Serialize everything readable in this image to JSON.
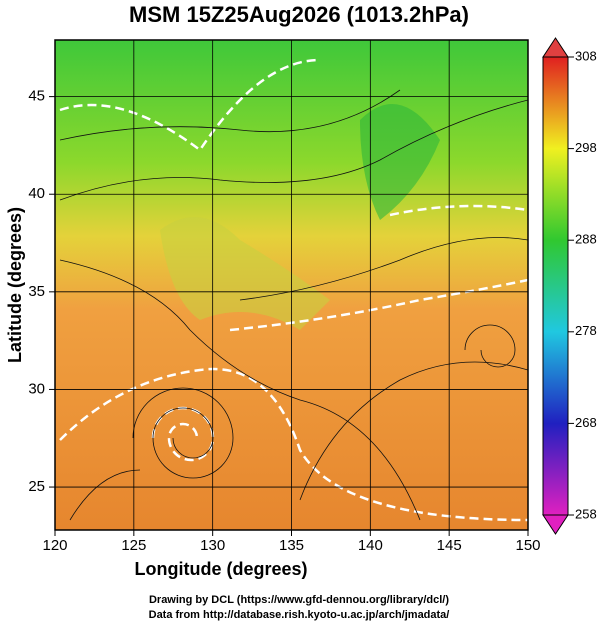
{
  "chart_data": {
    "type": "map",
    "title": "MSM 15Z25Aug2026 (1013.2hPa)",
    "xlabel": "Longitude (degrees)",
    "ylabel": "Latitude  (degrees)",
    "xlim": [
      120,
      150
    ],
    "xticks": [
      120,
      125,
      130,
      135,
      140,
      145,
      150
    ],
    "ylim": [
      22.8,
      47.9
    ],
    "yticks": [
      25,
      30,
      35,
      40,
      45
    ],
    "grid": true,
    "colorbar": {
      "lim": [
        258,
        308
      ],
      "ticks": [
        258,
        268,
        278,
        288,
        298,
        308
      ]
    },
    "annotations": [
      "Drawing by DCL (https://www.gfd-dennou.org/library/dcl/)",
      "Data from http://database.rish.kyoto-u.ac.jp/arch/jmadata/"
    ]
  }
}
